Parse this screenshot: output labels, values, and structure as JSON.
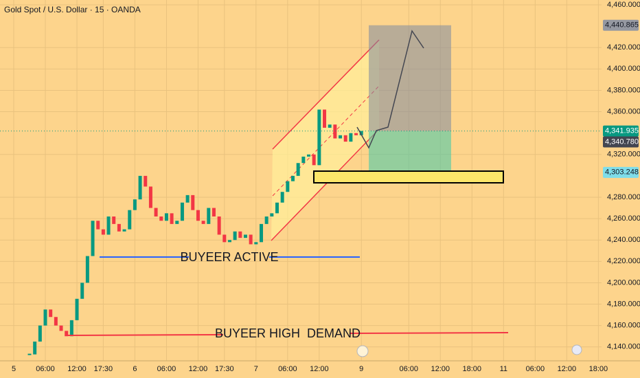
{
  "chart_data": {
    "type": "candlestick",
    "title": "Gold Spot / U.S. Dollar · 15 · OANDA",
    "categories": [
      "5",
      null,
      null,
      null,
      null,
      null,
      "06:00",
      null,
      null,
      null,
      null,
      null,
      "12:00",
      null,
      null,
      null,
      null,
      "17:30",
      null,
      null,
      null,
      null,
      null,
      "6",
      null,
      null,
      null,
      null,
      null,
      "06:00",
      null,
      null,
      null,
      null,
      null,
      "12:00",
      null,
      null,
      null,
      null,
      "17:30",
      null,
      null,
      null,
      null,
      null,
      "7",
      null,
      null,
      null,
      null,
      null,
      "06:00",
      null,
      null,
      null,
      null,
      null,
      "12:00",
      null,
      null,
      null,
      null,
      null,
      null,
      null,
      "9",
      null,
      null,
      null,
      null,
      null,
      null,
      null,
      null,
      "06:00",
      null,
      null,
      null,
      null,
      null,
      "12:00",
      null,
      null,
      null,
      null,
      null,
      "18:00",
      null,
      null,
      null,
      null,
      null,
      "11",
      null,
      null,
      null,
      null,
      null,
      "06:00",
      null,
      null,
      null,
      null,
      null,
      "12:00",
      null,
      null,
      null,
      null,
      null,
      "18:00"
    ],
    "values": [
      null,
      null,
      null,
      4133,
      4145,
      4160,
      4175,
      4168,
      4160,
      4155,
      4150,
      4165,
      4185,
      4200,
      4225,
      4258,
      4250,
      4245,
      4262,
      4255,
      4248,
      4250,
      4268,
      4278,
      4300,
      4290,
      4270,
      4262,
      4258,
      4265,
      4255,
      4258,
      4275,
      4282,
      4268,
      4258,
      4255,
      4270,
      4262,
      4245,
      4238,
      4240,
      4248,
      4242,
      4245,
      4236,
      4238,
      4255,
      4262,
      4265,
      4275,
      4285,
      4295,
      4300,
      4312,
      4318,
      4320,
      4310,
      4362,
      4345,
      4348,
      4335,
      4338,
      4332,
      4340,
      4338,
      4342,
      null,
      null,
      null,
      null,
      null,
      null,
      null,
      null,
      null,
      null,
      null,
      null,
      null,
      null,
      null,
      null,
      null,
      null,
      null,
      null,
      null,
      null,
      null,
      null,
      null,
      null,
      null,
      null,
      null,
      null,
      null,
      null,
      null,
      null,
      null,
      null,
      null,
      null,
      null,
      null,
      null,
      null,
      null,
      null,
      null
    ],
    "up_color": "#089981",
    "down_color": "#f23645",
    "ylim": [
      4127,
      4464.5
    ],
    "yticks": [
      {
        "value": 4460,
        "label": "4,460.000"
      },
      {
        "value": 4420,
        "label": "4,420.000"
      },
      {
        "value": 4400,
        "label": "4,400.000"
      },
      {
        "value": 4380,
        "label": "4,380.000"
      },
      {
        "value": 4360,
        "label": "4,360.000"
      },
      {
        "value": 4320,
        "label": "4,320.000"
      },
      {
        "value": 4280,
        "label": "4,280.000"
      },
      {
        "value": 4260,
        "label": "4,260.000"
      },
      {
        "value": 4240,
        "label": "4,240.000"
      },
      {
        "value": 4220,
        "label": "4,220.000"
      },
      {
        "value": 4200,
        "label": "4,200.000"
      },
      {
        "value": 4180,
        "label": "4,180.000"
      },
      {
        "value": 4160,
        "label": "4,160.000"
      },
      {
        "value": 4140,
        "label": "4,140.000"
      }
    ],
    "grid": true,
    "price_tags": [
      {
        "value": 4440.865,
        "label": "4,440.865",
        "color": "#9598a1",
        "text_color": "#131722"
      },
      {
        "value": 4341.935,
        "label": "4,341.935",
        "color": "#089981",
        "text_color": "#ffffff"
      },
      {
        "value": 4340.78,
        "label": "4,340.780",
        "color": "#434651",
        "text_color": "#ffffff"
      },
      {
        "value": 4303.248,
        "label": "4,303.248",
        "color": "#7fdde9",
        "text_color": "#131722"
      }
    ],
    "annotations": [
      "BUYEER ACTIVE",
      "BUYEER HIGH  DEMAND"
    ]
  }
}
